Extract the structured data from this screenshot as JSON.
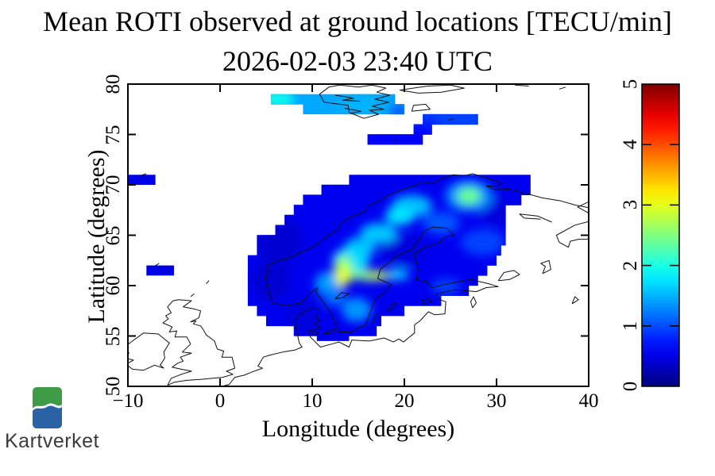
{
  "title": "Mean ROTI observed at ground locations [TECU/min]",
  "subtitle": "2026-02-03 23:40 UTC",
  "axes": {
    "xlabel": "Longitude (degrees)",
    "ylabel": "Latitude (degrees)",
    "x_ticks": [
      -10,
      0,
      10,
      20,
      30,
      40
    ],
    "y_ticks": [
      50,
      55,
      60,
      65,
      70,
      75,
      80
    ]
  },
  "logo": {
    "text": "Kartverket",
    "green": "#3F9B46",
    "blue": "#2A62A6",
    "text_color": "#3a3a3a"
  },
  "chart_data": {
    "type": "heatmap",
    "title": "Mean ROTI observed at ground locations [TECU/min]",
    "subtitle": "2026-02-03 23:40 UTC",
    "xlabel": "Longitude (degrees)",
    "ylabel": "Latitude (degrees)",
    "units": "TECU/min",
    "xlim": [
      -10,
      40
    ],
    "ylim": [
      50,
      80
    ],
    "grid": false,
    "colorbar": {
      "min": 0,
      "max": 5,
      "ticks": [
        0,
        1,
        2,
        3,
        4,
        5
      ],
      "colormap": "jet",
      "position": "right"
    },
    "regions": [
      {
        "name": "scandinavia-main",
        "base_value": 0.55,
        "rows": [
          {
            "lat": [
              70,
              71
            ],
            "lon": [
              14,
              33.7
            ]
          },
          {
            "lat": [
              69,
              70
            ],
            "lon": [
              11,
              33.7
            ]
          },
          {
            "lat": [
              68,
              69
            ],
            "lon": [
              9,
              32.7
            ]
          },
          {
            "lat": [
              67,
              68
            ],
            "lon": [
              8,
              31
            ]
          },
          {
            "lat": [
              66,
              67
            ],
            "lon": [
              7,
              31
            ]
          },
          {
            "lat": [
              65,
              66
            ],
            "lon": [
              6,
              31
            ]
          },
          {
            "lat": [
              64,
              65
            ],
            "lon": [
              4,
              31
            ]
          },
          {
            "lat": [
              63,
              64
            ],
            "lon": [
              4,
              30.5
            ]
          },
          {
            "lat": [
              62,
              63
            ],
            "lon": [
              3,
              30
            ]
          },
          {
            "lat": [
              61,
              62
            ],
            "lon": [
              3,
              29
            ]
          },
          {
            "lat": [
              60,
              61
            ],
            "lon": [
              3,
              28
            ]
          },
          {
            "lat": [
              59,
              60
            ],
            "lon": [
              3,
              27
            ]
          },
          {
            "lat": [
              58,
              59
            ],
            "lon": [
              3,
              24
            ]
          },
          {
            "lat": [
              57,
              58
            ],
            "lon": [
              4,
              20
            ]
          },
          {
            "lat": [
              56,
              57
            ],
            "lon": [
              5,
              17.5
            ]
          },
          {
            "lat": [
              55,
              56
            ],
            "lon": [
              8,
              17
            ]
          },
          {
            "lat": [
              54.5,
              55
            ],
            "lon": [
              10.5,
              14
            ]
          }
        ],
        "hotspots": [
          {
            "c": [
              6.5,
              64.5
            ],
            "r": [
              2.5,
              2.5
            ],
            "v": 0.4
          },
          {
            "c": [
              5.5,
              60.5
            ],
            "r": [
              2.2,
              2.0
            ],
            "v": 0.4
          },
          {
            "c": [
              20,
              63.5
            ],
            "r": [
              2.5,
              1.5
            ],
            "v": 0.45
          },
          {
            "c": [
              30,
              67.5
            ],
            "r": [
              2.0,
              1.5
            ],
            "v": 0.45
          },
          {
            "c": [
              9,
              57.0
            ],
            "r": [
              2.0,
              1.5
            ],
            "v": 0.45
          },
          {
            "c": [
              28.5,
              64.3
            ],
            "r": [
              2.4,
              1.3
            ],
            "v": 0.95
          },
          {
            "c": [
              24.0,
              66.2
            ],
            "r": [
              2.0,
              1.1
            ],
            "v": 1.05
          },
          {
            "c": [
              24.5,
              59.9
            ],
            "r": [
              1.6,
              0.8
            ],
            "v": 0.95
          },
          {
            "c": [
              27.0,
              68.9
            ],
            "r": [
              2.6,
              1.6
            ],
            "v": 1.3
          },
          {
            "c": [
              27.0,
              68.9
            ],
            "r": [
              1.3,
              0.85
            ],
            "v": 2.4
          },
          {
            "c": [
              20.8,
              67.9
            ],
            "r": [
              2.2,
              1.1
            ],
            "v": 1.55
          },
          {
            "c": [
              19.5,
              66.9
            ],
            "r": [
              1.6,
              0.9
            ],
            "v": 1.75
          },
          {
            "c": [
              17.2,
              65.2
            ],
            "r": [
              2.0,
              1.0
            ],
            "v": 1.6
          },
          {
            "c": [
              15.2,
              63.8
            ],
            "r": [
              1.7,
              1.0
            ],
            "v": 1.55
          },
          {
            "c": [
              14.2,
              62.5
            ],
            "r": [
              2.0,
              1.3
            ],
            "v": 1.7
          },
          {
            "c": [
              11.8,
              60.2
            ],
            "r": [
              1.5,
              1.2
            ],
            "v": 1.4
          },
          {
            "c": [
              12.4,
              58.9
            ],
            "r": [
              1.2,
              0.9
            ],
            "v": 1.2
          },
          {
            "c": [
              14.8,
              57.6
            ],
            "r": [
              1.6,
              1.2
            ],
            "v": 1.35
          },
          {
            "c": [
              19.3,
              61.1
            ],
            "r": [
              1.2,
              0.5
            ],
            "v": 1.7
          },
          {
            "c": [
              13.4,
              61.5
            ],
            "r": [
              1.0,
              1.5
            ],
            "v": 2.6
          },
          {
            "c": [
              13.3,
              60.9
            ],
            "r": [
              0.75,
              1.0
            ],
            "v": 3.0
          },
          {
            "c": [
              16.3,
              61.0
            ],
            "r": [
              2.3,
              0.5
            ],
            "v": 2.5
          },
          {
            "c": [
              17.0,
              61.0
            ],
            "r": [
              1.2,
              0.32
            ],
            "v": 2.9
          }
        ]
      },
      {
        "name": "svalbard",
        "base_value": 1.45,
        "rows": [
          {
            "lat": [
              78,
              79
            ],
            "lon": [
              5.5,
              19
            ]
          },
          {
            "lat": [
              77,
              78
            ],
            "lon": [
              9,
              20
            ]
          }
        ],
        "hotspots": [
          {
            "c": [
              6.3,
              78.5
            ],
            "r": [
              1.8,
              0.8
            ],
            "v": 1.95
          },
          {
            "c": [
              15.5,
              77.9
            ],
            "r": [
              2.5,
              1.0
            ],
            "v": 1.5
          },
          {
            "c": [
              19.5,
              77.3
            ],
            "r": [
              1.2,
              0.8
            ],
            "v": 1.1
          }
        ]
      },
      {
        "name": "northeast-bars",
        "base_value": 0.8,
        "rows": [
          {
            "lat": [
              76,
              77
            ],
            "lon": [
              22,
              28
            ],
            "v": 0.95
          },
          {
            "lat": [
              75,
              76
            ],
            "lon": [
              21,
              23
            ],
            "v": 0.75
          },
          {
            "lat": [
              74,
              75
            ],
            "lon": [
              16,
              22
            ],
            "v": 0.6
          }
        ],
        "hotspots": []
      },
      {
        "name": "jan-mayen",
        "base_value": 0.5,
        "rows": [
          {
            "lat": [
              70,
              71
            ],
            "lon": [
              -10,
              -7
            ]
          }
        ],
        "hotspots": []
      },
      {
        "name": "faroe",
        "base_value": 0.5,
        "rows": [
          {
            "lat": [
              61,
              62
            ],
            "lon": [
              -8,
              -5
            ]
          }
        ],
        "hotspots": []
      }
    ]
  }
}
